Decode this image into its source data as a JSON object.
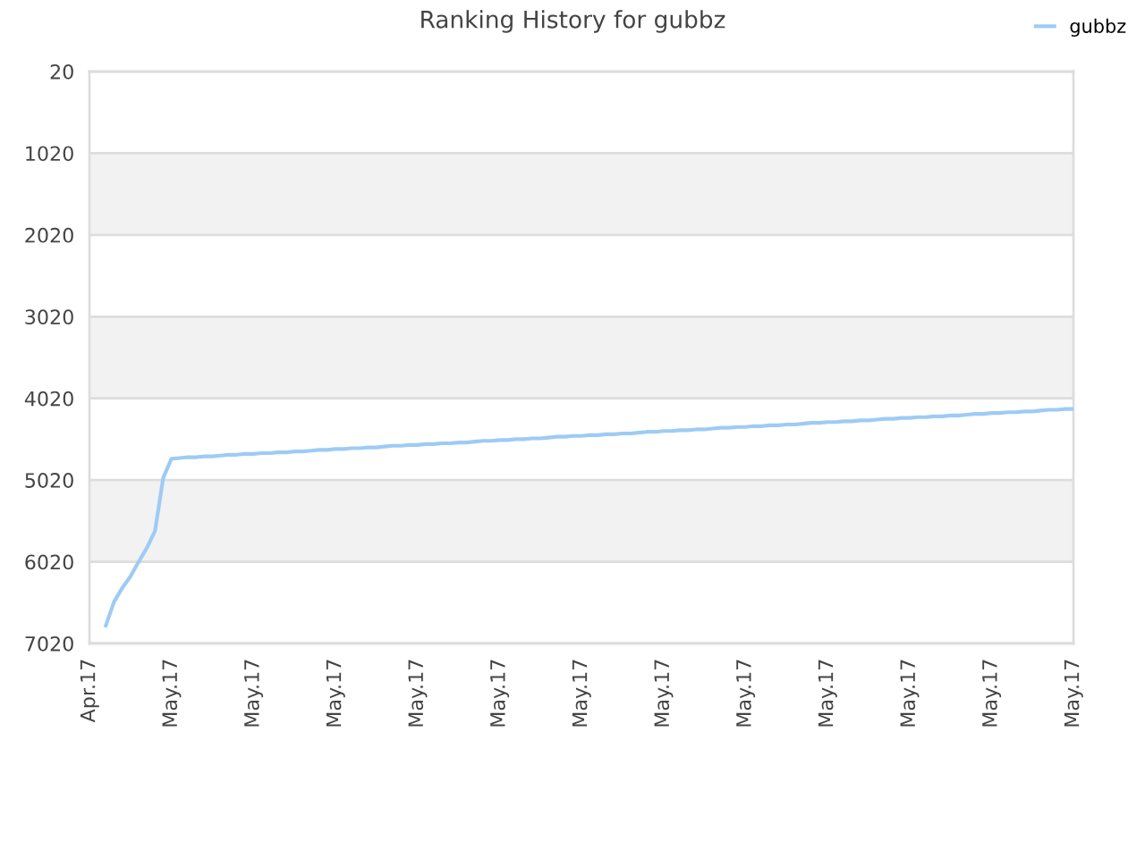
{
  "chart_data": {
    "type": "line",
    "title": "Ranking History for gubbz",
    "categories": [
      "Apr.17",
      null,
      null,
      null,
      null,
      null,
      null,
      null,
      null,
      null,
      "May.17",
      null,
      null,
      null,
      null,
      null,
      null,
      null,
      null,
      null,
      "May.17",
      null,
      null,
      null,
      null,
      null,
      null,
      null,
      null,
      null,
      "May.17",
      null,
      null,
      null,
      null,
      null,
      null,
      null,
      null,
      null,
      "May.17",
      null,
      null,
      null,
      null,
      null,
      null,
      null,
      null,
      null,
      "May.17",
      null,
      null,
      null,
      null,
      null,
      null,
      null,
      null,
      null,
      "May.17",
      null,
      null,
      null,
      null,
      null,
      null,
      null,
      null,
      null,
      "May.17",
      null,
      null,
      null,
      null,
      null,
      null,
      null,
      null,
      null,
      "May.17",
      null,
      null,
      null,
      null,
      null,
      null,
      null,
      null,
      null,
      "May.17",
      null,
      null,
      null,
      null,
      null,
      null,
      null,
      null,
      null,
      "May.17",
      null,
      null,
      null,
      null,
      null,
      null,
      null,
      null,
      null,
      "May.17",
      null,
      null,
      null,
      null,
      null,
      null,
      null,
      null,
      null,
      "May.17"
    ],
    "series": [
      {
        "name": "gubbz",
        "color": "#9ecbf5",
        "values": [
          null,
          null,
          6800,
          6510,
          6340,
          6200,
          6020,
          5850,
          5640,
          4990,
          4760,
          4750,
          4740,
          4740,
          4730,
          4730,
          4720,
          4710,
          4710,
          4700,
          4700,
          4690,
          4690,
          4680,
          4680,
          4670,
          4670,
          4660,
          4650,
          4650,
          4640,
          4640,
          4630,
          4630,
          4620,
          4620,
          4610,
          4600,
          4600,
          4590,
          4590,
          4580,
          4580,
          4570,
          4570,
          4560,
          4560,
          4550,
          4540,
          4540,
          4530,
          4530,
          4520,
          4520,
          4510,
          4510,
          4500,
          4490,
          4490,
          4480,
          4480,
          4470,
          4470,
          4460,
          4460,
          4450,
          4450,
          4440,
          4430,
          4430,
          4420,
          4420,
          4410,
          4410,
          4400,
          4400,
          4390,
          4380,
          4380,
          4370,
          4370,
          4360,
          4360,
          4350,
          4350,
          4340,
          4340,
          4330,
          4320,
          4320,
          4310,
          4310,
          4300,
          4300,
          4290,
          4290,
          4280,
          4270,
          4270,
          4260,
          4260,
          4250,
          4250,
          4240,
          4240,
          4230,
          4230,
          4220,
          4210,
          4210,
          4200,
          4200,
          4190,
          4190,
          4180,
          4180,
          4170,
          4160,
          4160,
          4150,
          4150
        ]
      }
    ],
    "ylim": [
      7020,
      20
    ],
    "yticks": [
      20,
      1020,
      2020,
      3020,
      4020,
      5020,
      6020,
      7020
    ],
    "bands": [
      {
        "axis": "y",
        "from": 1020,
        "to": 2020,
        "color": "#f2f2f2"
      },
      {
        "axis": "y",
        "from": 3020,
        "to": 4020,
        "color": "#f2f2f2"
      },
      {
        "axis": "y",
        "from": 5020,
        "to": 6020,
        "color": "#f2f2f2"
      }
    ],
    "grid": "y",
    "legend": "top right",
    "line_style": "solid"
  }
}
